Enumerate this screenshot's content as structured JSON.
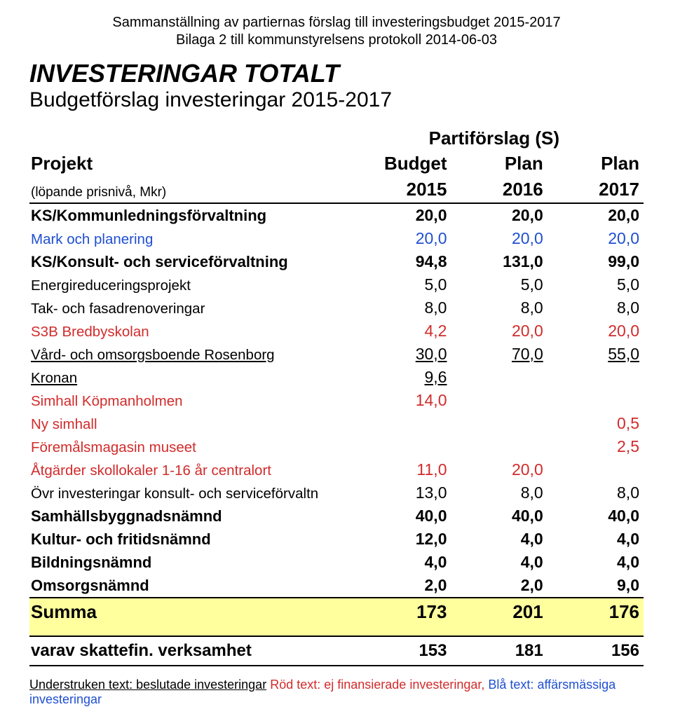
{
  "header": {
    "line1": "Sammanställning av partiernas förslag till investeringsbudget 2015-2017",
    "line2": "Bilaga 2 till kommunstyrelsens protokoll 2014-06-03"
  },
  "title": "INVESTERINGAR TOTALT",
  "subtitle": "Budgetförslag investeringar 2015-2017",
  "party_label": "Partiförslag (S)",
  "col_headers": {
    "row1": {
      "name": "Projekt",
      "c1": "Budget",
      "c2": "Plan",
      "c3": "Plan"
    },
    "row2": {
      "name": "(löpande prisnivå, Mkr)",
      "c1": "2015",
      "c2": "2016",
      "c3": "2017"
    }
  },
  "rows": [
    {
      "name": "KS/Kommunledningsförvaltning",
      "v": [
        "20,0",
        "20,0",
        "20,0"
      ],
      "bold": true
    },
    {
      "name": "Mark och planering",
      "v": [
        "20,0",
        "20,0",
        "20,0"
      ],
      "blue": true
    },
    {
      "name": "KS/Konsult- och serviceförvaltning",
      "v": [
        "94,8",
        "131,0",
        "99,0"
      ],
      "bold": true
    },
    {
      "name": "Energireduceringsprojekt",
      "v": [
        "5,0",
        "5,0",
        "5,0"
      ]
    },
    {
      "name": "Tak- och fasadrenoveringar",
      "v": [
        "8,0",
        "8,0",
        "8,0"
      ]
    },
    {
      "name": "S3B Bredbyskolan",
      "v": [
        "4,2",
        "20,0",
        "20,0"
      ],
      "red": true
    },
    {
      "name": "Vård- och omsorgsboende Rosenborg",
      "v": [
        "30,0",
        "70,0",
        "55,0"
      ],
      "underline": true
    },
    {
      "name": "Kronan",
      "v": [
        "9,6",
        "",
        ""
      ],
      "underline": true
    },
    {
      "name": "Simhall Köpmanholmen",
      "v": [
        "14,0",
        "",
        ""
      ],
      "red": true
    },
    {
      "name": "Ny simhall",
      "v": [
        "",
        "",
        "0,5"
      ],
      "red": true
    },
    {
      "name": "Föremålsmagasin museet",
      "v": [
        "",
        "",
        "2,5"
      ],
      "red": true
    },
    {
      "name": "Åtgärder skollokaler 1-16 år centralort",
      "v": [
        "11,0",
        "20,0",
        ""
      ],
      "red": true
    },
    {
      "name": "Övr investeringar konsult- och serviceförvaltn",
      "v": [
        "13,0",
        "8,0",
        "8,0"
      ]
    },
    {
      "name": "Samhällsbyggnadsnämnd",
      "v": [
        "40,0",
        "40,0",
        "40,0"
      ],
      "bold": true
    },
    {
      "name": "Kultur- och fritidsnämnd",
      "v": [
        "12,0",
        "4,0",
        "4,0"
      ],
      "bold": true
    },
    {
      "name": "Bildningsnämnd",
      "v": [
        "4,0",
        "4,0",
        "4,0"
      ],
      "bold": true
    },
    {
      "name": "Omsorgsnämnd",
      "v": [
        "2,0",
        "2,0",
        "9,0"
      ],
      "bold": true
    }
  ],
  "summa": {
    "label": "Summa",
    "v": [
      "173",
      "201",
      "176"
    ]
  },
  "varav": {
    "label": "varav skattefin. verksamhet",
    "v": [
      "153",
      "181",
      "156"
    ]
  },
  "footer": {
    "part1": "Understruken text: beslutade investeringar",
    "part2": "Röd text: ej finansierade investeringar,",
    "part3": "Blå text: affärsmässiga investeringar"
  },
  "colors": {
    "highlight_bg": "#ffff9e",
    "red": "#d22b2b",
    "blue": "#1f4fd1"
  }
}
